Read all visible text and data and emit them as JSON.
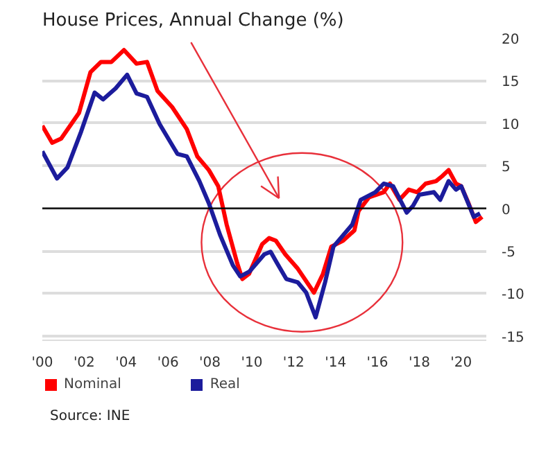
{
  "chart_data": {
    "type": "line",
    "title": "House Prices, Annual Change (%)",
    "annotations": [
      "Source: INE"
    ],
    "xlim": [
      2000,
      2021.2
    ],
    "xticks": [
      {
        "value": 2000,
        "label": "'00"
      },
      {
        "value": 2002,
        "label": "'02"
      },
      {
        "value": 2004,
        "label": "'04"
      },
      {
        "value": 2006,
        "label": "'06"
      },
      {
        "value": 2008,
        "label": "'08"
      },
      {
        "value": 2010,
        "label": "'10"
      },
      {
        "value": 2012,
        "label": "'12"
      },
      {
        "value": 2014,
        "label": "'14"
      },
      {
        "value": 2016,
        "label": "'16"
      },
      {
        "value": 2018,
        "label": "'18"
      },
      {
        "value": 2020,
        "label": "'20"
      }
    ],
    "ylim": [
      -15.5,
      20
    ],
    "yticks": [
      -15,
      -10,
      -5,
      0,
      5,
      10,
      15,
      20
    ],
    "grid": "y",
    "legend": "bottom",
    "marker": "none",
    "line_style": "solid",
    "ref_lines": [
      {
        "axis": "y",
        "value": 0,
        "color": "#000000"
      }
    ],
    "series": [
      {
        "name": "Nominal",
        "color": "#ff0000",
        "x": [
          2000.0,
          2000.47,
          2000.9,
          2001.75,
          2002.3,
          2002.8,
          2003.3,
          2003.9,
          2004.5,
          2005.0,
          2005.5,
          2006.2,
          2006.9,
          2007.4,
          2007.95,
          2008.4,
          2008.8,
          2009.3,
          2009.55,
          2009.87,
          2010.5,
          2010.83,
          2011.15,
          2011.6,
          2012.2,
          2012.97,
          2013.4,
          2013.8,
          2014.36,
          2014.9,
          2015.1,
          2015.6,
          2016.3,
          2016.6,
          2017.05,
          2017.5,
          2017.9,
          2018.3,
          2018.8,
          2019.1,
          2019.4,
          2019.75,
          2020.0,
          2020.35,
          2020.7,
          2021.0
        ],
        "values": [
          9.7,
          7.7,
          8.2,
          11.2,
          16.0,
          17.2,
          17.2,
          18.6,
          17.0,
          17.2,
          13.8,
          11.9,
          9.3,
          6.1,
          4.5,
          2.6,
          -1.9,
          -6.4,
          -8.3,
          -7.7,
          -4.2,
          -3.5,
          -3.8,
          -5.4,
          -7.1,
          -9.9,
          -7.7,
          -4.5,
          -3.8,
          -2.6,
          -0.3,
          1.3,
          1.9,
          2.9,
          1.0,
          2.2,
          1.9,
          2.9,
          3.2,
          3.8,
          4.5,
          2.9,
          2.6,
          0.6,
          -1.6,
          -1.0
        ]
      },
      {
        "name": "Real",
        "color": "#1c1c9c",
        "x": [
          2000.0,
          2000.7,
          2001.2,
          2001.85,
          2002.5,
          2002.9,
          2003.5,
          2004.05,
          2004.5,
          2005.0,
          2005.6,
          2006.45,
          2006.9,
          2007.5,
          2007.95,
          2008.5,
          2009.1,
          2009.45,
          2009.9,
          2010.6,
          2010.9,
          2011.2,
          2011.65,
          2012.2,
          2012.6,
          2013.05,
          2013.5,
          2013.9,
          2014.8,
          2015.2,
          2015.9,
          2016.3,
          2016.75,
          2017.4,
          2017.7,
          2018.0,
          2018.7,
          2019.0,
          2019.4,
          2019.75,
          2020.0,
          2020.6,
          2020.9
        ],
        "values": [
          6.7,
          3.5,
          4.8,
          9.0,
          13.6,
          12.8,
          14.1,
          15.7,
          13.5,
          13.1,
          9.9,
          6.4,
          6.1,
          3.2,
          0.6,
          -3.2,
          -6.7,
          -8.0,
          -7.4,
          -5.4,
          -5.1,
          -6.4,
          -8.3,
          -8.7,
          -9.9,
          -12.8,
          -8.7,
          -4.5,
          -1.9,
          1.0,
          1.9,
          2.9,
          2.6,
          -0.5,
          0.3,
          1.6,
          1.9,
          1.0,
          3.2,
          2.2,
          2.6,
          -1.0,
          -0.6
        ]
      }
    ]
  }
}
